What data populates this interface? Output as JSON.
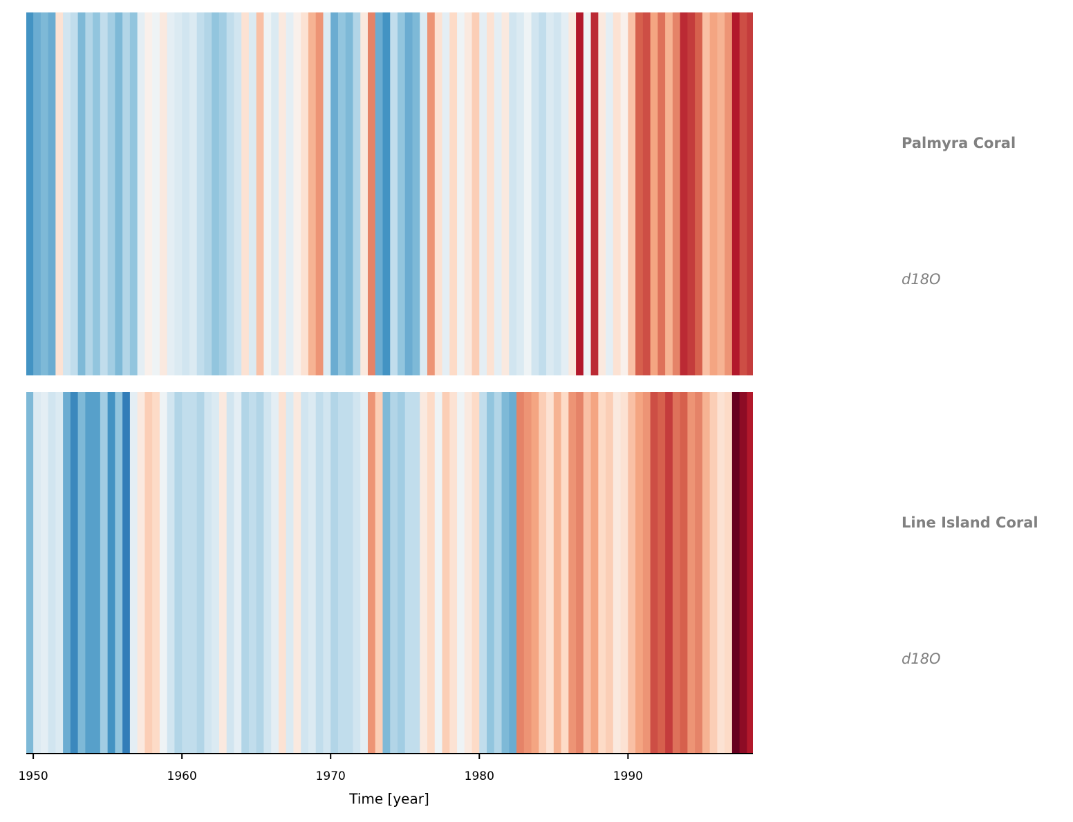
{
  "chart_data": {
    "type": "stripes",
    "xlabel": "Time [year]",
    "colormap": "RdBu_r",
    "clim": [
      -2,
      2
    ],
    "xlim": [
      1949.53,
      1998.4
    ],
    "xticks": [
      1950,
      1960,
      1970,
      1980,
      1990
    ],
    "x": [
      1949.5,
      1950,
      1950.5,
      1951,
      1951.5,
      1952,
      1952.5,
      1953,
      1953.5,
      1954,
      1954.5,
      1955,
      1955.5,
      1956,
      1956.5,
      1957,
      1957.5,
      1958,
      1958.5,
      1959,
      1959.5,
      1960,
      1960.5,
      1961,
      1961.5,
      1962,
      1962.5,
      1963,
      1963.5,
      1964,
      1964.5,
      1965,
      1965.5,
      1966,
      1966.5,
      1967,
      1967.5,
      1968,
      1968.5,
      1969,
      1969.5,
      1970,
      1970.5,
      1971,
      1971.5,
      1972,
      1972.5,
      1973,
      1973.5,
      1974,
      1974.5,
      1975,
      1975.5,
      1976,
      1976.5,
      1977,
      1977.5,
      1978,
      1978.5,
      1979,
      1979.5,
      1980,
      1980.5,
      1981,
      1981.5,
      1982,
      1982.5,
      1983,
      1983.5,
      1984,
      1984.5,
      1985,
      1985.5,
      1986,
      1986.5,
      1987,
      1987.5,
      1988,
      1988.5,
      1989,
      1989.5,
      1990,
      1990.5,
      1991,
      1991.5,
      1992,
      1992.5,
      1993,
      1993.5,
      1994,
      1994.5,
      1995,
      1995.5,
      1996,
      1996.5,
      1997,
      1997.5,
      1998
    ],
    "series": [
      {
        "name": "Palmyra Coral",
        "units": "d18O",
        "values": [
          -1.2,
          -1.0,
          -0.9,
          -1.0,
          0.3,
          -0.4,
          -0.5,
          -0.9,
          -0.6,
          -0.8,
          -0.5,
          -0.7,
          -0.9,
          -0.6,
          -0.8,
          -0.2,
          0.1,
          -0.1,
          0.2,
          -0.2,
          -0.3,
          -0.4,
          -0.3,
          -0.5,
          -0.6,
          -0.8,
          -0.7,
          -0.5,
          -0.4,
          0.3,
          -0.3,
          0.6,
          -0.1,
          -0.3,
          0.2,
          -0.2,
          0.1,
          0.3,
          0.7,
          0.9,
          -0.3,
          -1.0,
          -0.8,
          -0.9,
          -0.6,
          0.2,
          1.0,
          -1.0,
          -1.2,
          -0.5,
          -0.8,
          -1.0,
          -0.9,
          -0.3,
          0.9,
          0.3,
          -0.2,
          0.4,
          -0.1,
          0.2,
          0.5,
          -0.2,
          0.3,
          -0.2,
          0.2,
          -0.4,
          -0.3,
          -0.1,
          -0.4,
          -0.5,
          -0.3,
          -0.4,
          -0.2,
          0.2,
          1.6,
          -0.1,
          1.5,
          0.2,
          -0.2,
          0.3,
          0.1,
          0.6,
          1.2,
          1.3,
          0.8,
          1.1,
          0.7,
          1.0,
          1.5,
          1.4,
          1.2,
          0.6,
          0.8,
          0.7,
          0.9,
          1.6,
          1.3,
          1.4
        ]
      },
      {
        "name": "Line Island Coral",
        "units": "d18O",
        "values": [
          -0.9,
          -0.3,
          -0.2,
          -0.4,
          -0.3,
          -1.0,
          -1.3,
          -0.9,
          -1.1,
          -1.1,
          -0.7,
          -1.2,
          -0.8,
          -1.4,
          -0.2,
          0.2,
          0.5,
          0.4,
          -0.1,
          -0.4,
          -0.6,
          -0.5,
          -0.5,
          -0.6,
          -0.4,
          -0.3,
          0.2,
          -0.4,
          -0.2,
          -0.6,
          -0.5,
          -0.6,
          -0.4,
          -0.2,
          0.3,
          -0.3,
          0.2,
          -0.4,
          -0.3,
          -0.5,
          -0.4,
          -0.6,
          -0.5,
          -0.5,
          -0.4,
          -0.2,
          0.9,
          0.5,
          -0.9,
          -0.6,
          -0.7,
          -0.5,
          -0.5,
          0.2,
          0.4,
          -0.1,
          0.5,
          0.3,
          -0.1,
          0.2,
          0.4,
          -0.5,
          -0.8,
          -0.6,
          -0.9,
          -1.0,
          1.0,
          0.9,
          0.8,
          0.5,
          0.3,
          0.7,
          0.4,
          0.9,
          1.0,
          0.6,
          0.8,
          0.4,
          0.5,
          0.2,
          0.3,
          0.6,
          0.8,
          0.9,
          1.3,
          1.2,
          1.4,
          1.1,
          1.2,
          0.9,
          1.0,
          0.7,
          0.5,
          0.3,
          0.4,
          2.0,
          1.8,
          1.6
        ]
      }
    ]
  }
}
